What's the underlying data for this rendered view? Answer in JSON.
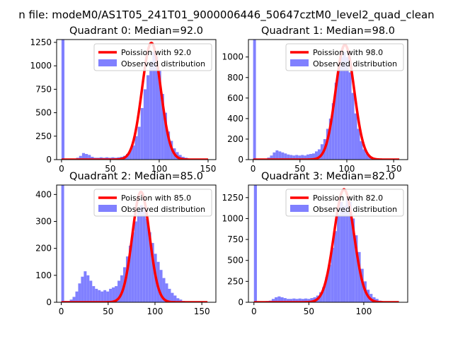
{
  "figure": {
    "suptitle": "n file: modeM0/AS1T05_241T01_9000006446_50647cztM0_level2_quad_clean"
  },
  "chart_data": [
    {
      "type": "bar",
      "title": "Quadrant 0: Median=92.0",
      "xlim": [
        -5,
        158
      ],
      "ylim": [
        0,
        1280
      ],
      "xticks": [
        0,
        50,
        100,
        150
      ],
      "yticks": [
        0,
        250,
        500,
        750,
        1000,
        1250
      ],
      "legend_position": "top-right",
      "series": [
        {
          "name": "Poission with 92.0",
          "kind": "line",
          "color": "#ff0000",
          "mean": 92.0,
          "x_range": [
            0,
            150
          ],
          "peak": 1245
        },
        {
          "name": "Observed distribution",
          "kind": "hist",
          "color": "#8080ff",
          "bin_width": 3,
          "bins": [
            {
              "x": 0,
              "y": 1280
            },
            {
              "x": 3,
              "y": 10
            },
            {
              "x": 6,
              "y": 5
            },
            {
              "x": 9,
              "y": 10
            },
            {
              "x": 12,
              "y": 10
            },
            {
              "x": 15,
              "y": 20
            },
            {
              "x": 18,
              "y": 40
            },
            {
              "x": 21,
              "y": 70
            },
            {
              "x": 24,
              "y": 60
            },
            {
              "x": 27,
              "y": 50
            },
            {
              "x": 30,
              "y": 30
            },
            {
              "x": 33,
              "y": 20
            },
            {
              "x": 36,
              "y": 20
            },
            {
              "x": 39,
              "y": 25
            },
            {
              "x": 42,
              "y": 20
            },
            {
              "x": 45,
              "y": 25
            },
            {
              "x": 48,
              "y": 20
            },
            {
              "x": 51,
              "y": 25
            },
            {
              "x": 54,
              "y": 20
            },
            {
              "x": 57,
              "y": 25
            },
            {
              "x": 60,
              "y": 30
            },
            {
              "x": 63,
              "y": 40
            },
            {
              "x": 66,
              "y": 60
            },
            {
              "x": 69,
              "y": 100
            },
            {
              "x": 72,
              "y": 150
            },
            {
              "x": 75,
              "y": 250
            },
            {
              "x": 78,
              "y": 350
            },
            {
              "x": 81,
              "y": 550
            },
            {
              "x": 84,
              "y": 750
            },
            {
              "x": 87,
              "y": 900
            },
            {
              "x": 90,
              "y": 1050
            },
            {
              "x": 93,
              "y": 1150
            },
            {
              "x": 96,
              "y": 1100
            },
            {
              "x": 99,
              "y": 950
            },
            {
              "x": 102,
              "y": 700
            },
            {
              "x": 105,
              "y": 500
            },
            {
              "x": 108,
              "y": 300
            },
            {
              "x": 111,
              "y": 200
            },
            {
              "x": 114,
              "y": 120
            },
            {
              "x": 117,
              "y": 80
            },
            {
              "x": 120,
              "y": 50
            },
            {
              "x": 123,
              "y": 30
            },
            {
              "x": 126,
              "y": 20
            },
            {
              "x": 129,
              "y": 10
            },
            {
              "x": 132,
              "y": 8
            },
            {
              "x": 135,
              "y": 5
            },
            {
              "x": 138,
              "y": 3
            },
            {
              "x": 141,
              "y": 2
            }
          ]
        }
      ]
    },
    {
      "type": "bar",
      "title": "Quadrant 1: Median=98.0",
      "xlim": [
        -5,
        165
      ],
      "ylim": [
        0,
        1170
      ],
      "xticks": [
        0,
        50,
        100,
        150
      ],
      "yticks": [
        0,
        200,
        400,
        600,
        800,
        1000
      ],
      "legend_position": "top-right",
      "series": [
        {
          "name": "Poission with 98.0",
          "kind": "line",
          "color": "#ff0000",
          "mean": 98.0,
          "x_range": [
            0,
            156
          ],
          "peak": 1120
        },
        {
          "name": "Observed distribution",
          "kind": "hist",
          "color": "#8080ff",
          "bin_width": 3,
          "bins": [
            {
              "x": 0,
              "y": 1170
            },
            {
              "x": 3,
              "y": 5
            },
            {
              "x": 6,
              "y": 5
            },
            {
              "x": 9,
              "y": 5
            },
            {
              "x": 12,
              "y": 10
            },
            {
              "x": 15,
              "y": 20
            },
            {
              "x": 18,
              "y": 40
            },
            {
              "x": 21,
              "y": 70
            },
            {
              "x": 24,
              "y": 90
            },
            {
              "x": 27,
              "y": 80
            },
            {
              "x": 30,
              "y": 70
            },
            {
              "x": 33,
              "y": 60
            },
            {
              "x": 36,
              "y": 50
            },
            {
              "x": 39,
              "y": 45
            },
            {
              "x": 42,
              "y": 40
            },
            {
              "x": 45,
              "y": 45
            },
            {
              "x": 48,
              "y": 40
            },
            {
              "x": 51,
              "y": 45
            },
            {
              "x": 54,
              "y": 40
            },
            {
              "x": 57,
              "y": 50
            },
            {
              "x": 60,
              "y": 55
            },
            {
              "x": 63,
              "y": 60
            },
            {
              "x": 66,
              "y": 80
            },
            {
              "x": 69,
              "y": 100
            },
            {
              "x": 72,
              "y": 150
            },
            {
              "x": 75,
              "y": 200
            },
            {
              "x": 78,
              "y": 300
            },
            {
              "x": 81,
              "y": 400
            },
            {
              "x": 84,
              "y": 550
            },
            {
              "x": 87,
              "y": 750
            },
            {
              "x": 90,
              "y": 900
            },
            {
              "x": 93,
              "y": 1000
            },
            {
              "x": 96,
              "y": 1050
            },
            {
              "x": 99,
              "y": 1000
            },
            {
              "x": 102,
              "y": 850
            },
            {
              "x": 105,
              "y": 650
            },
            {
              "x": 108,
              "y": 450
            },
            {
              "x": 111,
              "y": 300
            },
            {
              "x": 114,
              "y": 180
            },
            {
              "x": 117,
              "y": 100
            },
            {
              "x": 120,
              "y": 60
            },
            {
              "x": 123,
              "y": 30
            },
            {
              "x": 126,
              "y": 15
            },
            {
              "x": 129,
              "y": 10
            },
            {
              "x": 132,
              "y": 5
            },
            {
              "x": 135,
              "y": 3
            },
            {
              "x": 138,
              "y": 2
            }
          ]
        }
      ]
    },
    {
      "type": "bar",
      "title": "Quadrant 2: Median=85.0",
      "xlim": [
        -5,
        165
      ],
      "ylim": [
        0,
        435
      ],
      "xticks": [
        0,
        50,
        100,
        150
      ],
      "yticks": [
        0,
        100,
        200,
        300,
        400
      ],
      "legend_position": "top-right",
      "series": [
        {
          "name": "Poission with 85.0",
          "kind": "line",
          "color": "#ff0000",
          "mean": 85.0,
          "x_range": [
            0,
            156
          ],
          "peak": 410
        },
        {
          "name": "Observed distribution",
          "kind": "hist",
          "color": "#8080ff",
          "bin_width": 3,
          "bins": [
            {
              "x": 0,
              "y": 435
            },
            {
              "x": 3,
              "y": 5
            },
            {
              "x": 6,
              "y": 5
            },
            {
              "x": 9,
              "y": 10
            },
            {
              "x": 12,
              "y": 20
            },
            {
              "x": 15,
              "y": 40
            },
            {
              "x": 18,
              "y": 70
            },
            {
              "x": 21,
              "y": 95
            },
            {
              "x": 24,
              "y": 115
            },
            {
              "x": 27,
              "y": 100
            },
            {
              "x": 30,
              "y": 80
            },
            {
              "x": 33,
              "y": 60
            },
            {
              "x": 36,
              "y": 50
            },
            {
              "x": 39,
              "y": 45
            },
            {
              "x": 42,
              "y": 40
            },
            {
              "x": 45,
              "y": 45
            },
            {
              "x": 48,
              "y": 40
            },
            {
              "x": 51,
              "y": 50
            },
            {
              "x": 54,
              "y": 55
            },
            {
              "x": 57,
              "y": 60
            },
            {
              "x": 60,
              "y": 80
            },
            {
              "x": 63,
              "y": 100
            },
            {
              "x": 66,
              "y": 130
            },
            {
              "x": 69,
              "y": 170
            },
            {
              "x": 72,
              "y": 210
            },
            {
              "x": 75,
              "y": 260
            },
            {
              "x": 78,
              "y": 300
            },
            {
              "x": 81,
              "y": 340
            },
            {
              "x": 84,
              "y": 360
            },
            {
              "x": 87,
              "y": 350
            },
            {
              "x": 90,
              "y": 310
            },
            {
              "x": 93,
              "y": 260
            },
            {
              "x": 96,
              "y": 220
            },
            {
              "x": 99,
              "y": 180
            },
            {
              "x": 102,
              "y": 150
            },
            {
              "x": 105,
              "y": 120
            },
            {
              "x": 108,
              "y": 90
            },
            {
              "x": 111,
              "y": 70
            },
            {
              "x": 114,
              "y": 50
            },
            {
              "x": 117,
              "y": 35
            },
            {
              "x": 120,
              "y": 25
            },
            {
              "x": 123,
              "y": 15
            },
            {
              "x": 126,
              "y": 10
            },
            {
              "x": 129,
              "y": 5
            },
            {
              "x": 132,
              "y": 3
            }
          ]
        }
      ]
    },
    {
      "type": "bar",
      "title": "Quadrant 3: Median=82.0",
      "xlim": [
        -5,
        140
      ],
      "ylim": [
        0,
        1400
      ],
      "xticks": [
        0,
        50,
        100
      ],
      "yticks": [
        0,
        250,
        500,
        750,
        1000,
        1250
      ],
      "legend_position": "top-right",
      "series": [
        {
          "name": "Poission with 82.0",
          "kind": "line",
          "color": "#ff0000",
          "mean": 82.0,
          "x_range": [
            0,
            132
          ],
          "peak": 1350
        },
        {
          "name": "Observed distribution",
          "kind": "hist",
          "color": "#8080ff",
          "bin_width": 2.7,
          "bins": [
            {
              "x": 0,
              "y": 1400
            },
            {
              "x": 2.7,
              "y": 5
            },
            {
              "x": 5.4,
              "y": 5
            },
            {
              "x": 8.1,
              "y": 10
            },
            {
              "x": 10.8,
              "y": 15
            },
            {
              "x": 13.5,
              "y": 20
            },
            {
              "x": 16.2,
              "y": 40
            },
            {
              "x": 18.9,
              "y": 60
            },
            {
              "x": 21.6,
              "y": 70
            },
            {
              "x": 24.3,
              "y": 60
            },
            {
              "x": 27,
              "y": 50
            },
            {
              "x": 29.7,
              "y": 40
            },
            {
              "x": 32.4,
              "y": 40
            },
            {
              "x": 35.1,
              "y": 45
            },
            {
              "x": 37.8,
              "y": 40
            },
            {
              "x": 40.5,
              "y": 45
            },
            {
              "x": 43.2,
              "y": 40
            },
            {
              "x": 45.9,
              "y": 45
            },
            {
              "x": 48.6,
              "y": 40
            },
            {
              "x": 51.3,
              "y": 50
            },
            {
              "x": 54,
              "y": 60
            },
            {
              "x": 56.7,
              "y": 80
            },
            {
              "x": 59.4,
              "y": 120
            },
            {
              "x": 62.1,
              "y": 180
            },
            {
              "x": 64.8,
              "y": 300
            },
            {
              "x": 67.5,
              "y": 450
            },
            {
              "x": 70.2,
              "y": 650
            },
            {
              "x": 72.9,
              "y": 850
            },
            {
              "x": 75.6,
              "y": 1050
            },
            {
              "x": 78.3,
              "y": 1200
            },
            {
              "x": 81,
              "y": 1150
            },
            {
              "x": 83.7,
              "y": 1250
            },
            {
              "x": 86.4,
              "y": 1200
            },
            {
              "x": 89.1,
              "y": 1000
            },
            {
              "x": 91.8,
              "y": 800
            },
            {
              "x": 94.5,
              "y": 600
            },
            {
              "x": 97.2,
              "y": 400
            },
            {
              "x": 99.9,
              "y": 250
            },
            {
              "x": 102.6,
              "y": 150
            },
            {
              "x": 105.3,
              "y": 100
            },
            {
              "x": 108,
              "y": 60
            },
            {
              "x": 110.7,
              "y": 40
            },
            {
              "x": 113.4,
              "y": 20
            },
            {
              "x": 116.1,
              "y": 10
            },
            {
              "x": 118.8,
              "y": 5
            }
          ]
        }
      ]
    }
  ]
}
